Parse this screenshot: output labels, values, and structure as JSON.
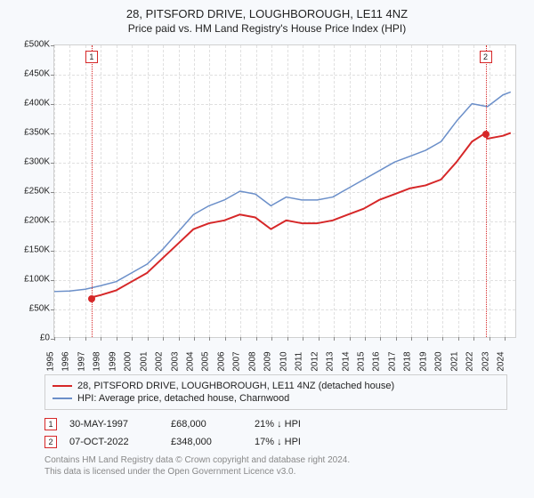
{
  "title": "28, PITSFORD DRIVE, LOUGHBOROUGH, LE11 4NZ",
  "subtitle": "Price paid vs. HM Land Registry's House Price Index (HPI)",
  "chart": {
    "type": "line",
    "background_color": "#ffffff",
    "grid_color": "#e0e0e0",
    "y": {
      "min": 0,
      "max": 500000,
      "step": 50000,
      "prefix": "£",
      "suffix": "K",
      "labels": [
        "£0",
        "£50K",
        "£100K",
        "£150K",
        "£200K",
        "£250K",
        "£300K",
        "£350K",
        "£400K",
        "£450K",
        "£500K"
      ]
    },
    "x": {
      "min": 1995,
      "max": 2024.8,
      "years": [
        1995,
        1996,
        1997,
        1998,
        1999,
        2000,
        2001,
        2002,
        2003,
        2004,
        2005,
        2006,
        2007,
        2008,
        2009,
        2010,
        2011,
        2012,
        2013,
        2014,
        2015,
        2016,
        2017,
        2018,
        2019,
        2020,
        2021,
        2022,
        2023,
        2024
      ]
    },
    "series": [
      {
        "name": "property",
        "label": "28, PITSFORD DRIVE, LOUGHBOROUGH, LE11 4NZ (detached house)",
        "color": "#d62728",
        "width": 2,
        "data": [
          [
            1997.4,
            68000
          ],
          [
            1998,
            72000
          ],
          [
            1999,
            80000
          ],
          [
            2000,
            95000
          ],
          [
            2001,
            110000
          ],
          [
            2002,
            135000
          ],
          [
            2003,
            160000
          ],
          [
            2004,
            185000
          ],
          [
            2005,
            195000
          ],
          [
            2006,
            200000
          ],
          [
            2007,
            210000
          ],
          [
            2008,
            205000
          ],
          [
            2009,
            185000
          ],
          [
            2010,
            200000
          ],
          [
            2011,
            195000
          ],
          [
            2012,
            195000
          ],
          [
            2013,
            200000
          ],
          [
            2014,
            210000
          ],
          [
            2015,
            220000
          ],
          [
            2016,
            235000
          ],
          [
            2017,
            245000
          ],
          [
            2018,
            255000
          ],
          [
            2019,
            260000
          ],
          [
            2020,
            270000
          ],
          [
            2021,
            300000
          ],
          [
            2022,
            335000
          ],
          [
            2022.77,
            348000
          ],
          [
            2023,
            340000
          ],
          [
            2024,
            345000
          ],
          [
            2024.5,
            350000
          ]
        ]
      },
      {
        "name": "hpi",
        "label": "HPI: Average price, detached house, Charnwood",
        "color": "#6b8fc9",
        "width": 1.5,
        "data": [
          [
            1995,
            78000
          ],
          [
            1996,
            79000
          ],
          [
            1997,
            82000
          ],
          [
            1998,
            88000
          ],
          [
            1999,
            95000
          ],
          [
            2000,
            110000
          ],
          [
            2001,
            125000
          ],
          [
            2002,
            150000
          ],
          [
            2003,
            180000
          ],
          [
            2004,
            210000
          ],
          [
            2005,
            225000
          ],
          [
            2006,
            235000
          ],
          [
            2007,
            250000
          ],
          [
            2008,
            245000
          ],
          [
            2009,
            225000
          ],
          [
            2010,
            240000
          ],
          [
            2011,
            235000
          ],
          [
            2012,
            235000
          ],
          [
            2013,
            240000
          ],
          [
            2014,
            255000
          ],
          [
            2015,
            270000
          ],
          [
            2016,
            285000
          ],
          [
            2017,
            300000
          ],
          [
            2018,
            310000
          ],
          [
            2019,
            320000
          ],
          [
            2020,
            335000
          ],
          [
            2021,
            370000
          ],
          [
            2022,
            400000
          ],
          [
            2023,
            395000
          ],
          [
            2024,
            415000
          ],
          [
            2024.5,
            420000
          ]
        ]
      }
    ],
    "markers": [
      {
        "num": "1",
        "year": 1997.4,
        "color": "#d62728",
        "point_value": 68000
      },
      {
        "num": "2",
        "year": 2022.77,
        "color": "#d62728",
        "point_value": 348000
      }
    ]
  },
  "legend": {
    "items": [
      {
        "color": "#d62728",
        "label": "28, PITSFORD DRIVE, LOUGHBOROUGH, LE11 4NZ (detached house)"
      },
      {
        "color": "#6b8fc9",
        "label": "HPI: Average price, detached house, Charnwood"
      }
    ]
  },
  "events": [
    {
      "num": "1",
      "color": "#d62728",
      "date": "30-MAY-1997",
      "price": "£68,000",
      "diff": "21% ↓ HPI"
    },
    {
      "num": "2",
      "color": "#d62728",
      "date": "07-OCT-2022",
      "price": "£348,000",
      "diff": "17% ↓ HPI"
    }
  ],
  "attribution": {
    "line1": "Contains HM Land Registry data © Crown copyright and database right 2024.",
    "line2": "This data is licensed under the Open Government Licence v3.0."
  }
}
